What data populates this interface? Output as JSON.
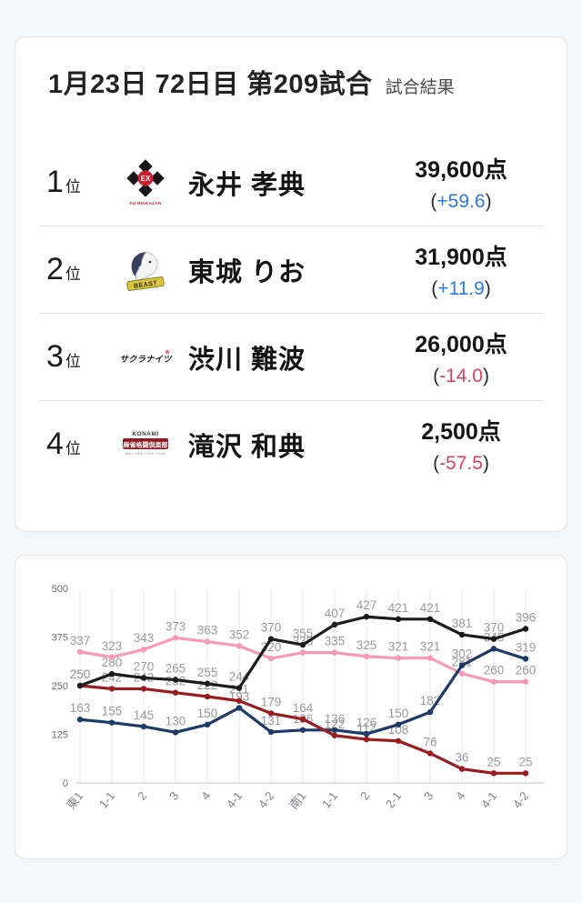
{
  "header": {
    "title": "1月23日 72日目 第209試合",
    "subtitle": "試合結果"
  },
  "punct": {
    "open": "(",
    "close": ")"
  },
  "rank_suffix": "位",
  "rankings": [
    {
      "rank": "1",
      "player": "永井 孝典",
      "score": "39,600点",
      "change": "+59.6",
      "change_color": "#2979f2",
      "logo": {
        "ex": "EX",
        "caption": "FU-RINKAZAN"
      }
    },
    {
      "rank": "2",
      "player": "東城 りお",
      "score": "31,900点",
      "change": "+11.9",
      "change_color": "#2979f2",
      "logo": {
        "banner": "BEAST"
      }
    },
    {
      "rank": "3",
      "player": "渋川 難波",
      "score": "26,000点",
      "change": "-14.0",
      "change_color": "#e5405e",
      "logo": {
        "text": "サクラナイツ"
      }
    },
    {
      "rank": "4",
      "player": "滝沢 和典",
      "score": "2,500点",
      "change": "-57.5",
      "change_color": "#e5405e",
      "logo": {
        "brand": "KONAMI",
        "main": "麻雀格闘倶楽部",
        "caption": "MAH-JONG FIGHT CLUB"
      }
    }
  ],
  "chart_data": {
    "type": "line",
    "title": "",
    "xlabel": "",
    "ylabel": "",
    "x_labels": [
      "東1",
      "1-1",
      "2",
      "3",
      "4",
      "4-1",
      "4-2",
      "南1",
      "1-1",
      "2",
      "2-1",
      "3",
      "4",
      "4-1",
      "4-2"
    ],
    "y_ticks": [
      0,
      125,
      250,
      375,
      500
    ],
    "ylim": [
      0,
      500
    ],
    "grid": "vertical",
    "legend": "none",
    "label_color": "#9a9a9a",
    "series": [
      {
        "name": "渋川 難波",
        "color": "#f79ab8",
        "values": [
          337,
          323,
          343,
          373,
          363,
          352,
          320,
          335,
          335,
          325,
          321,
          321,
          281,
          260,
          260
        ]
      },
      {
        "name": "東城 りお",
        "color": "#1d3a68",
        "values": [
          163,
          155,
          145,
          130,
          150,
          193,
          131,
          136,
          136,
          126,
          150,
          182,
          302,
          345,
          319
        ]
      },
      {
        "name": "滝沢 和典",
        "color": "#9a1c1f",
        "values": [
          250,
          242,
          242,
          232,
          222,
          211,
          179,
          164,
          122,
          112,
          108,
          76,
          36,
          25,
          25
        ]
      },
      {
        "name": "永井 孝典",
        "color": "#1c1c1c",
        "values": [
          250,
          280,
          270,
          265,
          255,
          244,
          370,
          355,
          407,
          427,
          421,
          421,
          381,
          370,
          396
        ]
      }
    ]
  }
}
